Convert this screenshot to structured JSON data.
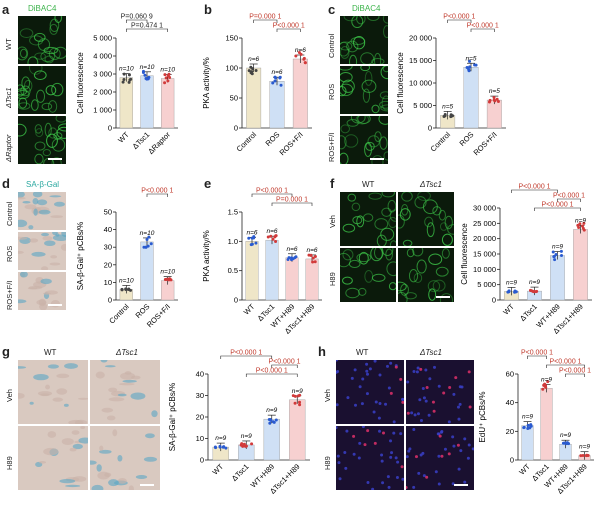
{
  "panels": [
    {
      "id": "a",
      "label": "a",
      "stain": "DiBAC4",
      "rows": [
        "WT",
        "ΔTsc1",
        "ΔRaptor"
      ]
    },
    {
      "id": "b",
      "label": "b"
    },
    {
      "id": "c",
      "label": "c",
      "stain": "DiBAC4",
      "rows": [
        "Control",
        "ROS",
        "ROS+F/I"
      ]
    },
    {
      "id": "d",
      "label": "d",
      "stain": "SA-β-Gal",
      "rows": [
        "Control",
        "ROS",
        "ROS+F/I"
      ]
    },
    {
      "id": "e",
      "label": "e"
    },
    {
      "id": "f",
      "label": "f",
      "cols": [
        "WT",
        "ΔTsc1"
      ],
      "rows": [
        "Veh",
        "H89"
      ]
    },
    {
      "id": "g",
      "label": "g",
      "cols": [
        "WT",
        "ΔTsc1"
      ],
      "rows": [
        "Veh",
        "H89"
      ]
    },
    {
      "id": "h",
      "label": "h",
      "cols": [
        "WT",
        "ΔTsc1"
      ],
      "rows": [
        "Veh",
        "H89"
      ]
    }
  ],
  "chart_data": [
    {
      "panel": "a",
      "type": "bar",
      "ylabel": "Cell fluorescence",
      "ylim": [
        0,
        5000
      ],
      "yticks": [
        "0",
        "1 000",
        "2 000",
        "3 000",
        "4 000",
        "5 000"
      ],
      "categories": [
        "WT",
        "ΔTsc1",
        "ΔRaptor"
      ],
      "values": [
        2800,
        2900,
        2750
      ],
      "n": [
        "n=10",
        "n=10",
        "n=10"
      ],
      "colors": [
        "#efe6c8",
        "#cfe0f5",
        "#f7d0d0"
      ],
      "dots": [
        "#444444",
        "#2a5bd0",
        "#d23a3a"
      ],
      "comparisons": [
        {
          "from": 0,
          "to": 1,
          "text": "P=0.060 9",
          "color": "#222"
        },
        {
          "from": 0,
          "to": 2,
          "text": "P=0.474 1",
          "color": "#222"
        }
      ]
    },
    {
      "panel": "b",
      "type": "bar",
      "ylabel": "PKA activity/%",
      "ylim": [
        0,
        150
      ],
      "yticks": [
        "0",
        "50",
        "100",
        "150"
      ],
      "categories": [
        "Control",
        "ROS",
        "ROS+F/I"
      ],
      "values": [
        100,
        78,
        115
      ],
      "n": [
        "n=6",
        "n=6",
        "n=6"
      ],
      "colors": [
        "#efe6c8",
        "#cfe0f5",
        "#f7d0d0"
      ],
      "dots": [
        "#444444",
        "#2a5bd0",
        "#d23a3a"
      ],
      "comparisons": [
        {
          "from": 0,
          "to": 1,
          "text": "P=0.000 1",
          "color": "#c0392b"
        },
        {
          "from": 1,
          "to": 2,
          "text": "P<0.000 1",
          "color": "#c0392b"
        }
      ]
    },
    {
      "panel": "c",
      "type": "bar",
      "ylabel": "Cell fluorescence",
      "ylim": [
        0,
        20000
      ],
      "yticks": [
        "0",
        "5 000",
        "10 000",
        "15 000",
        "20 000"
      ],
      "categories": [
        "Control",
        "ROS",
        "ROS+F/I"
      ],
      "values": [
        2800,
        13500,
        6200
      ],
      "n": [
        "n=5",
        "n=5",
        "n=5"
      ],
      "colors": [
        "#efe6c8",
        "#cfe0f5",
        "#f7d0d0"
      ],
      "dots": [
        "#444444",
        "#2a5bd0",
        "#d23a3a"
      ],
      "comparisons": [
        {
          "from": 0,
          "to": 1,
          "text": "P<0.000 1",
          "color": "#c0392b"
        },
        {
          "from": 1,
          "to": 2,
          "text": "P<0.000 1",
          "color": "#c0392b"
        }
      ]
    },
    {
      "panel": "d",
      "type": "bar",
      "ylabel": "SA-β-Gal⁺ pCBs/%",
      "ylim": [
        0,
        50
      ],
      "yticks": [
        "0",
        "10",
        "20",
        "30",
        "40",
        "50"
      ],
      "categories": [
        "Control",
        "ROS",
        "ROS+F/I"
      ],
      "values": [
        6,
        33,
        11
      ],
      "n": [
        "n=10",
        "n=10",
        "n=10"
      ],
      "colors": [
        "#efe6c8",
        "#cfe0f5",
        "#f7d0d0"
      ],
      "dots": [
        "#444444",
        "#2a5bd0",
        "#d23a3a"
      ],
      "comparisons": [
        {
          "from": 1,
          "to": 2,
          "text": "P<0.000 1",
          "color": "#c0392b"
        }
      ]
    },
    {
      "panel": "e",
      "type": "bar",
      "ylabel": "PKA activity/%",
      "ylim": [
        0,
        1.5
      ],
      "yticks": [
        "0",
        "0.5",
        "1.0",
        "1.5"
      ],
      "categories": [
        "WT",
        "ΔTsc1",
        "WT+H89",
        "ΔTsc1+H89"
      ],
      "values": [
        1.0,
        1.02,
        0.72,
        0.7
      ],
      "n": [
        "n=6",
        "n=6",
        "n=6",
        "n=6"
      ],
      "colors": [
        "#efe6c8",
        "#cfe0f5",
        "#f7d0d0",
        "#f7d0d0"
      ],
      "dots": [
        "#2a5bd0",
        "#d23a3a",
        "#2a5bd0",
        "#d23a3a"
      ],
      "comparisons": [
        {
          "from": 0,
          "to": 2,
          "text": "P<0.000 1",
          "color": "#c0392b"
        },
        {
          "from": 1,
          "to": 3,
          "text": "P=0.000 1",
          "color": "#c0392b"
        }
      ]
    },
    {
      "panel": "f",
      "type": "bar",
      "ylabel": "Cell fluorescence",
      "ylim": [
        0,
        30000
      ],
      "yticks": [
        "0",
        "5 000",
        "10 000",
        "15 000",
        "20 000",
        "25 000",
        "30 000"
      ],
      "categories": [
        "WT",
        "ΔTsc1",
        "WT+H89",
        "ΔTsc1+H89"
      ],
      "values": [
        2800,
        2900,
        14500,
        23000
      ],
      "n": [
        "n=9",
        "n=9",
        "n=9",
        "n=9"
      ],
      "colors": [
        "#efe6c8",
        "#cfe0f5",
        "#cfe0f5",
        "#f7d0d0"
      ],
      "dots": [
        "#2a5bd0",
        "#d23a3a",
        "#2a5bd0",
        "#d23a3a"
      ],
      "comparisons": [
        {
          "from": 0,
          "to": 2,
          "text": "P<0.000 1",
          "color": "#c0392b"
        },
        {
          "from": 2,
          "to": 3,
          "text": "P<0.000 1",
          "color": "#c0392b"
        },
        {
          "from": 1,
          "to": 3,
          "text": "P<0.000 1",
          "color": "#c0392b"
        }
      ]
    },
    {
      "panel": "g",
      "type": "bar",
      "ylabel": "SA-β-Gal⁺ pCBs/%",
      "ylim": [
        0,
        40
      ],
      "yticks": [
        "0",
        "10",
        "20",
        "30",
        "40"
      ],
      "categories": [
        "WT",
        "ΔTsc1",
        "WT+H89",
        "ΔTsc1+H89"
      ],
      "values": [
        6,
        7,
        19,
        28
      ],
      "n": [
        "n=9",
        "n=9",
        "n=9",
        "n=9"
      ],
      "colors": [
        "#efe6c8",
        "#cfe0f5",
        "#cfe0f5",
        "#f7d0d0"
      ],
      "dots": [
        "#2a5bd0",
        "#d23a3a",
        "#2a5bd0",
        "#d23a3a"
      ],
      "comparisons": [
        {
          "from": 0,
          "to": 2,
          "text": "P<0.000 1",
          "color": "#c0392b"
        },
        {
          "from": 2,
          "to": 3,
          "text": "P<0.000 1",
          "color": "#c0392b"
        },
        {
          "from": 1,
          "to": 3,
          "text": "P<0.000 1",
          "color": "#c0392b"
        }
      ]
    },
    {
      "panel": "h",
      "type": "bar",
      "ylabel": "EdU⁺ pCBs/%",
      "ylim": [
        0,
        60
      ],
      "yticks": [
        "0",
        "20",
        "40",
        "60"
      ],
      "categories": [
        "WT",
        "ΔTsc1",
        "WT+H89",
        "ΔTsc1+H89"
      ],
      "values": [
        24,
        50,
        11,
        3
      ],
      "n": [
        "n=9",
        "n=9",
        "n=9",
        "n=9"
      ],
      "colors": [
        "#cfe0f5",
        "#f7d0d0",
        "#cfe0f5",
        "#f7d0d0"
      ],
      "dots": [
        "#2a5bd0",
        "#d23a3a",
        "#2a5bd0",
        "#d23a3a"
      ],
      "comparisons": [
        {
          "from": 0,
          "to": 1,
          "text": "P<0.000 1",
          "color": "#c0392b"
        },
        {
          "from": 1,
          "to": 3,
          "text": "P<0.000 1",
          "color": "#c0392b"
        },
        {
          "from": 2,
          "to": 3,
          "text": "P<0.000 1",
          "color": "#c0392b"
        }
      ]
    }
  ]
}
